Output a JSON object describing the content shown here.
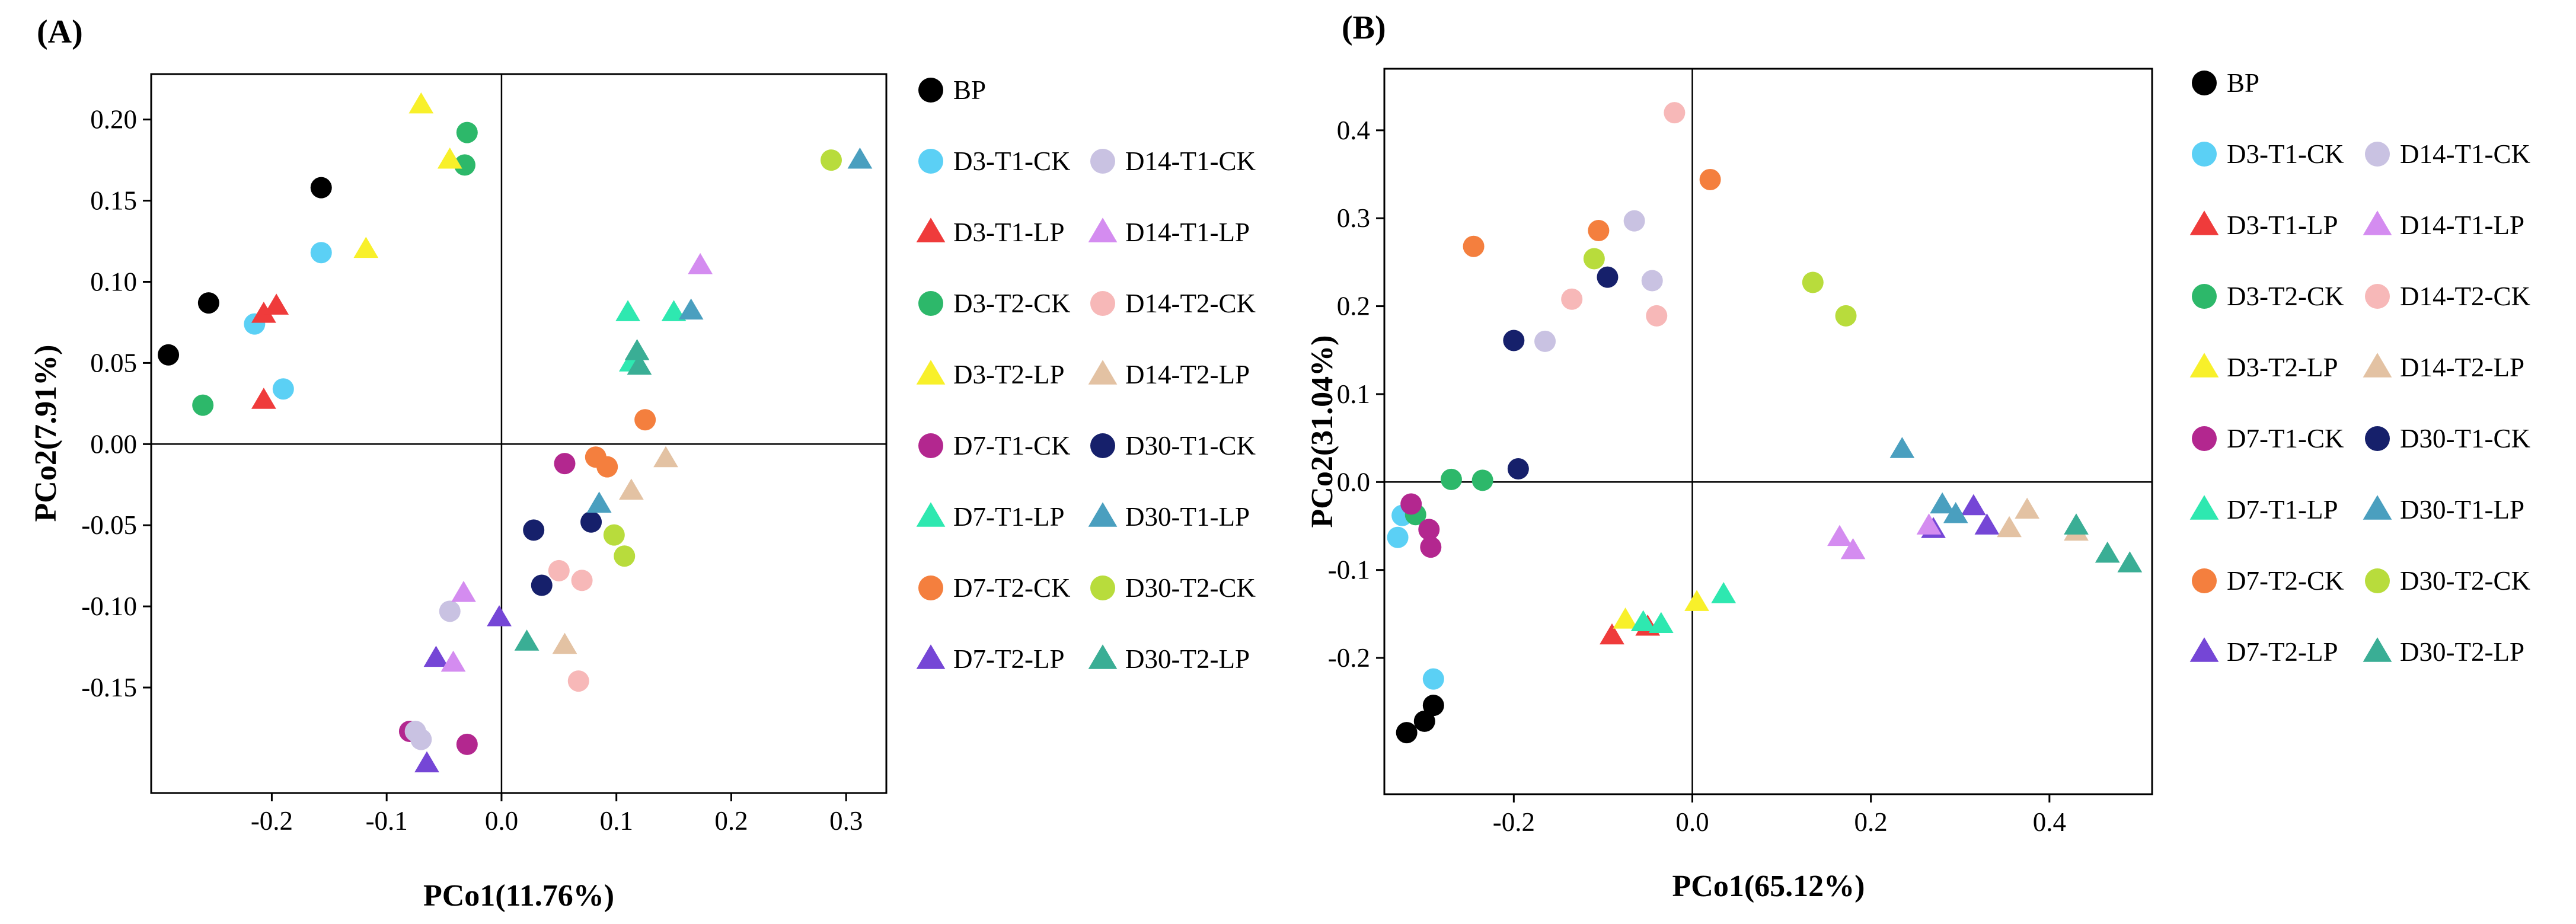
{
  "chart_data": [
    {
      "panel": "(A)",
      "type": "scatter",
      "xlabel": "PCo1(11.76%)",
      "ylabel": "PCo2(7.91%)",
      "xlim": [
        -0.305,
        0.335
      ],
      "ylim": [
        -0.215,
        0.228
      ],
      "xticks": [
        -0.2,
        -0.1,
        0,
        0.1,
        0.2,
        0.3
      ],
      "xtick_labels": [
        "-0.2",
        "-0.1",
        "0.0",
        "0.1",
        "0.2",
        "0.3"
      ],
      "yticks": [
        -0.15,
        -0.1,
        -0.05,
        0.0,
        0.05,
        0.1,
        0.15,
        0.2
      ],
      "ytick_labels": [
        "-0.15",
        "-0.10",
        "-0.05",
        "0.00",
        "0.05",
        "0.10",
        "0.15",
        "0.20"
      ],
      "zero_lines": true,
      "legend_position": "right",
      "series": [
        {
          "name": "BP",
          "color": "#000000",
          "marker": "circle",
          "points": [
            [
              -0.29,
              0.055
            ],
            [
              -0.255,
              0.087
            ],
            [
              -0.157,
              0.158
            ]
          ]
        },
        {
          "name": "D3-T1-CK",
          "color": "#5BD0F5",
          "marker": "circle",
          "points": [
            [
              -0.157,
              0.118
            ],
            [
              -0.215,
              0.074
            ],
            [
              -0.19,
              0.034
            ]
          ]
        },
        {
          "name": "D3-T1-LP",
          "color": "#EF3B3B",
          "marker": "triangle",
          "points": [
            [
              -0.207,
              0.08
            ],
            [
              -0.196,
              0.085
            ],
            [
              -0.207,
              0.027
            ]
          ]
        },
        {
          "name": "D3-T2-CK",
          "color": "#2DB86A",
          "marker": "circle",
          "points": [
            [
              -0.03,
              0.192
            ],
            [
              -0.032,
              0.172
            ],
            [
              -0.26,
              0.024
            ]
          ]
        },
        {
          "name": "D3-T2-LP",
          "color": "#F8F02A",
          "marker": "triangle",
          "points": [
            [
              -0.07,
              0.209
            ],
            [
              -0.045,
              0.175
            ],
            [
              -0.118,
              0.12
            ]
          ]
        },
        {
          "name": "D7-T1-CK",
          "color": "#B3278F",
          "marker": "circle",
          "points": [
            [
              0.055,
              -0.012
            ],
            [
              -0.08,
              -0.177
            ],
            [
              -0.03,
              -0.185
            ]
          ]
        },
        {
          "name": "D7-T1-LP",
          "color": "#2EE8B0",
          "marker": "triangle",
          "points": [
            [
              0.11,
              0.081
            ],
            [
              0.15,
              0.081
            ],
            [
              0.113,
              0.05
            ]
          ]
        },
        {
          "name": "D7-T2-CK",
          "color": "#F47F3E",
          "marker": "circle",
          "points": [
            [
              0.082,
              -0.008
            ],
            [
              0.092,
              -0.014
            ],
            [
              0.125,
              0.015
            ]
          ]
        },
        {
          "name": "D7-T2-LP",
          "color": "#7546D6",
          "marker": "triangle",
          "points": [
            [
              -0.057,
              -0.132
            ],
            [
              -0.065,
              -0.197
            ],
            [
              -0.002,
              -0.107
            ]
          ]
        },
        {
          "name": "D14-T1-CK",
          "color": "#C9C2E2",
          "marker": "circle",
          "points": [
            [
              -0.045,
              -0.103
            ],
            [
              -0.075,
              -0.177
            ],
            [
              -0.07,
              -0.182
            ]
          ]
        },
        {
          "name": "D14-T1-LP",
          "color": "#D48CF0",
          "marker": "triangle",
          "points": [
            [
              0.173,
              0.11
            ],
            [
              -0.033,
              -0.092
            ],
            [
              -0.042,
              -0.135
            ]
          ]
        },
        {
          "name": "D14-T2-CK",
          "color": "#F7B8B8",
          "marker": "circle",
          "points": [
            [
              0.05,
              -0.078
            ],
            [
              0.07,
              -0.084
            ],
            [
              0.067,
              -0.146
            ]
          ]
        },
        {
          "name": "D14-T2-LP",
          "color": "#E3C2A3",
          "marker": "triangle",
          "points": [
            [
              0.143,
              -0.009
            ],
            [
              0.113,
              -0.029
            ],
            [
              0.055,
              -0.124
            ]
          ]
        },
        {
          "name": "D30-T1-CK",
          "color": "#16206B",
          "marker": "circle",
          "points": [
            [
              0.028,
              -0.053
            ],
            [
              0.078,
              -0.048
            ],
            [
              0.035,
              -0.087
            ]
          ]
        },
        {
          "name": "D30-T1-LP",
          "color": "#4A9FBF",
          "marker": "triangle",
          "points": [
            [
              0.312,
              0.175
            ],
            [
              0.165,
              0.082
            ],
            [
              0.085,
              -0.037
            ]
          ]
        },
        {
          "name": "D30-T2-CK",
          "color": "#B8DC3C",
          "marker": "circle",
          "points": [
            [
              0.287,
              0.175
            ],
            [
              0.098,
              -0.056
            ],
            [
              0.107,
              -0.069
            ]
          ]
        },
        {
          "name": "D30-T2-LP",
          "color": "#3AAE95",
          "marker": "triangle",
          "points": [
            [
              0.118,
              0.057
            ],
            [
              0.12,
              0.048
            ],
            [
              0.022,
              -0.122
            ]
          ]
        }
      ]
    },
    {
      "panel": "(B)",
      "type": "scatter",
      "xlabel": "PCo1(65.12%)",
      "ylabel": "PCo2(31.04%)",
      "xlim": [
        -0.345,
        0.515
      ],
      "ylim": [
        -0.355,
        0.47
      ],
      "xticks": [
        -0.2,
        0.0,
        0.2,
        0.4
      ],
      "xtick_labels": [
        "-0.2",
        "0.0",
        "0.2",
        "0.4"
      ],
      "yticks": [
        -0.2,
        -0.1,
        0.0,
        0.1,
        0.2,
        0.3,
        0.4
      ],
      "ytick_labels": [
        "-0.2",
        "-0.1",
        "0.0",
        "0.1",
        "0.2",
        "0.3",
        "0.4"
      ],
      "zero_lines": true,
      "legend_position": "right",
      "series": [
        {
          "name": "BP",
          "color": "#000000",
          "marker": "circle",
          "points": [
            [
              -0.29,
              -0.254
            ],
            [
              -0.3,
              -0.272
            ],
            [
              -0.32,
              -0.285
            ]
          ]
        },
        {
          "name": "D3-T1-CK",
          "color": "#5BD0F5",
          "marker": "circle",
          "points": [
            [
              -0.325,
              -0.038
            ],
            [
              -0.33,
              -0.063
            ],
            [
              -0.29,
              -0.224
            ]
          ]
        },
        {
          "name": "D3-T1-LP",
          "color": "#EF3B3B",
          "marker": "triangle",
          "points": [
            [
              -0.09,
              -0.175
            ],
            [
              -0.05,
              -0.165
            ]
          ]
        },
        {
          "name": "D3-T2-CK",
          "color": "#2DB86A",
          "marker": "circle",
          "points": [
            [
              -0.27,
              0.003
            ],
            [
              -0.235,
              0.002
            ],
            [
              -0.31,
              -0.037
            ]
          ]
        },
        {
          "name": "D3-T2-LP",
          "color": "#F8F02A",
          "marker": "triangle",
          "points": [
            [
              -0.075,
              -0.157
            ],
            [
              0.005,
              -0.137
            ]
          ]
        },
        {
          "name": "D7-T1-CK",
          "color": "#B3278F",
          "marker": "circle",
          "points": [
            [
              -0.315,
              -0.025
            ],
            [
              -0.295,
              -0.054
            ],
            [
              -0.293,
              -0.074
            ]
          ]
        },
        {
          "name": "D7-T1-LP",
          "color": "#2EE8B0",
          "marker": "triangle",
          "points": [
            [
              -0.055,
              -0.16
            ],
            [
              -0.035,
              -0.162
            ],
            [
              0.035,
              -0.128
            ]
          ]
        },
        {
          "name": "D7-T2-CK",
          "color": "#F47F3E",
          "marker": "circle",
          "points": [
            [
              -0.245,
              0.268
            ],
            [
              -0.105,
              0.286
            ],
            [
              0.02,
              0.344
            ]
          ]
        },
        {
          "name": "D7-T2-LP",
          "color": "#7546D6",
          "marker": "triangle",
          "points": [
            [
              0.27,
              -0.054
            ],
            [
              0.315,
              -0.028
            ],
            [
              0.33,
              -0.05
            ]
          ]
        },
        {
          "name": "D14-T1-CK",
          "color": "#C9C2E2",
          "marker": "circle",
          "points": [
            [
              -0.065,
              0.297
            ],
            [
              -0.045,
              0.229
            ],
            [
              -0.165,
              0.16
            ]
          ]
        },
        {
          "name": "D14-T1-LP",
          "color": "#D48CF0",
          "marker": "triangle",
          "points": [
            [
              0.165,
              -0.063
            ],
            [
              0.18,
              -0.078
            ],
            [
              0.265,
              -0.05
            ]
          ]
        },
        {
          "name": "D14-T2-CK",
          "color": "#F7B8B8",
          "marker": "circle",
          "points": [
            [
              -0.02,
              0.42
            ],
            [
              -0.135,
              0.208
            ],
            [
              -0.04,
              0.189
            ]
          ]
        },
        {
          "name": "D14-T2-LP",
          "color": "#E3C2A3",
          "marker": "triangle",
          "points": [
            [
              0.355,
              -0.053
            ],
            [
              0.375,
              -0.032
            ],
            [
              0.43,
              -0.057
            ]
          ]
        },
        {
          "name": "D30-T1-CK",
          "color": "#16206B",
          "marker": "circle",
          "points": [
            [
              -0.095,
              0.233
            ],
            [
              -0.2,
              0.161
            ],
            [
              -0.195,
              0.015
            ]
          ]
        },
        {
          "name": "D30-T1-LP",
          "color": "#4A9FBF",
          "marker": "triangle",
          "points": [
            [
              0.235,
              0.037
            ],
            [
              0.28,
              -0.026
            ],
            [
              0.295,
              -0.037
            ]
          ]
        },
        {
          "name": "D30-T2-CK",
          "color": "#B8DC3C",
          "marker": "circle",
          "points": [
            [
              -0.11,
              0.254
            ],
            [
              0.135,
              0.227
            ],
            [
              0.172,
              0.189
            ]
          ]
        },
        {
          "name": "D30-T2-LP",
          "color": "#3AAE95",
          "marker": "triangle",
          "points": [
            [
              0.43,
              -0.05
            ],
            [
              0.465,
              -0.082
            ],
            [
              0.49,
              -0.093
            ]
          ]
        }
      ]
    }
  ]
}
